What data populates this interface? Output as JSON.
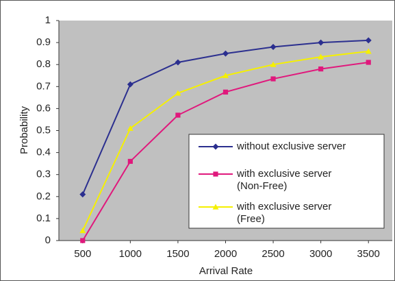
{
  "chart_data": {
    "type": "line",
    "x": [
      500,
      1000,
      1500,
      2000,
      2500,
      3000,
      3500
    ],
    "xlim": [
      250,
      3750
    ],
    "xticks": [
      500,
      1000,
      1500,
      2000,
      2500,
      3000,
      3500
    ],
    "ylim": [
      0,
      1
    ],
    "yticks": [
      0,
      0.1,
      0.2,
      0.3,
      0.4,
      0.5,
      0.6,
      0.7,
      0.8,
      0.9,
      1
    ],
    "xlabel": "Arrival Rate",
    "ylabel": "Probability",
    "legend": "lower right",
    "series": [
      {
        "name": "without exclusive server",
        "color": "#2b2f8f",
        "marker": "diamond",
        "values": [
          0.21,
          0.71,
          0.81,
          0.85,
          0.88,
          0.9,
          0.91
        ]
      },
      {
        "name": "with exclusive server (Non-Free)",
        "color": "#e0187c",
        "marker": "square",
        "values": [
          0,
          0.36,
          0.57,
          0.675,
          0.735,
          0.78,
          0.81
        ]
      },
      {
        "name": "with exclusive server (Free)",
        "color": "#f5f000",
        "marker": "triangle",
        "values": [
          0.045,
          0.51,
          0.67,
          0.75,
          0.8,
          0.835,
          0.86
        ]
      }
    ]
  }
}
